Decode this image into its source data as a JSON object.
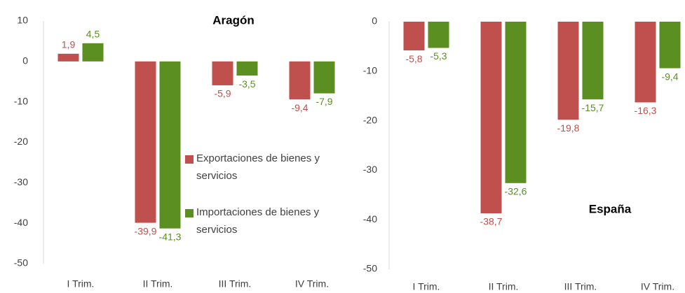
{
  "chart_data": [
    {
      "type": "bar",
      "title": "Aragón",
      "categories": [
        "I Trim.",
        "II Trim.",
        "III Trim.",
        "IV Trim."
      ],
      "series": [
        {
          "name": "Exportaciones de bienes y servicios",
          "color": "#c0504d",
          "values": [
            1.9,
            -39.9,
            -5.9,
            -9.4
          ],
          "value_labels": [
            "1,9",
            "-39,9",
            "-5,9",
            "-9,4"
          ]
        },
        {
          "name": "Importaciones de bienes y servicios",
          "color": "#5b8f22",
          "values": [
            4.5,
            -41.3,
            -3.5,
            -7.9
          ],
          "value_labels": [
            "4,5",
            "-41,3",
            "-3,5",
            "-7,9"
          ]
        }
      ],
      "ylim": [
        -50,
        10
      ],
      "yticks": [
        -50,
        -40,
        -30,
        -20,
        -10,
        0,
        10
      ]
    },
    {
      "type": "bar",
      "title": "España",
      "categories": [
        "I Trim.",
        "II Trim.",
        "III Trim.",
        "IV Trim."
      ],
      "series": [
        {
          "color": "#c0504d",
          "values": [
            -5.8,
            -38.7,
            -19.8,
            -16.3
          ],
          "value_labels": [
            "-5,8",
            "-38,7",
            "-19,8",
            "-16,3"
          ]
        },
        {
          "color": "#5b8f22",
          "values": [
            -5.3,
            -32.6,
            -15.7,
            -9.4
          ],
          "value_labels": [
            "-5,3",
            "-32,6",
            "-15,7",
            "-9,4"
          ]
        }
      ],
      "ylim": [
        -50,
        0
      ],
      "yticks": [
        -50,
        -40,
        -30,
        -20,
        -10,
        0
      ]
    }
  ]
}
